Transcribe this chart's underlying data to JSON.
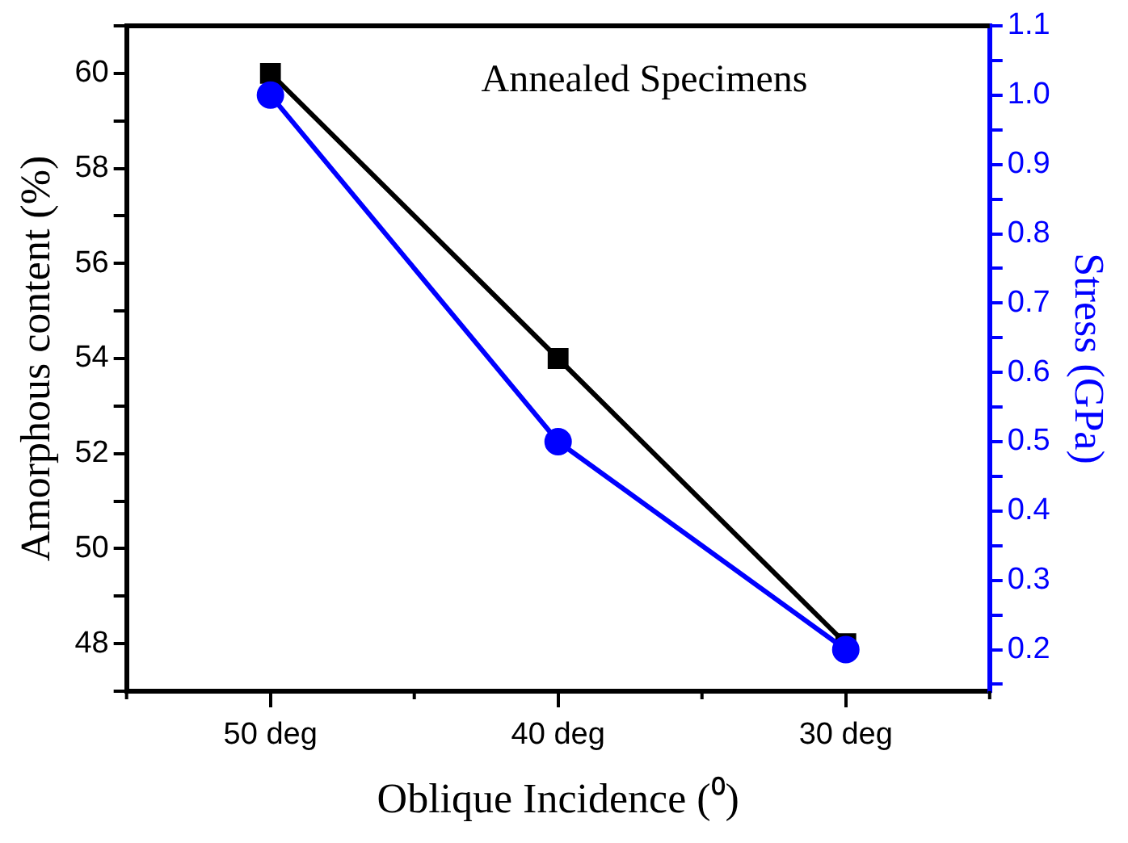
{
  "chart_data": {
    "type": "line",
    "title": "Annealed Specimens",
    "xlabel": "Oblique Incidence (⁰)",
    "ylabel": "Amorphous content (%)",
    "y2label": "Stress (GPa)",
    "categories": [
      "50 deg",
      "40 deg",
      "30 deg"
    ],
    "series": [
      {
        "color": "#000000",
        "values": [
          60,
          54,
          48
        ],
        "marker": "square"
      },
      {
        "color": "#0000ff",
        "values": [
          1.0,
          0.5,
          0.2
        ],
        "marker": "circle",
        "axis": "y2"
      }
    ],
    "ylim": [
      47,
      61
    ],
    "yticks": [
      {
        "value": 47,
        "label": null
      },
      48,
      {
        "value": 49,
        "label": null
      },
      50,
      {
        "value": 51,
        "label": null
      },
      52,
      {
        "value": 53,
        "label": null
      },
      54,
      {
        "value": 55,
        "label": null
      },
      56,
      {
        "value": 57,
        "label": null
      },
      58,
      {
        "value": 59,
        "label": null
      },
      60,
      {
        "value": 61,
        "label": null
      }
    ],
    "y2lim": [
      0.14,
      1.1
    ],
    "y2ticks": [
      {
        "value": 0.15,
        "label": null
      },
      {
        "value": 0.2,
        "label": "0.2"
      },
      {
        "value": 0.25,
        "label": null
      },
      {
        "value": 0.3,
        "label": "0.3"
      },
      {
        "value": 0.35,
        "label": null
      },
      {
        "value": 0.4,
        "label": "0.4"
      },
      {
        "value": 0.45,
        "label": null
      },
      {
        "value": 0.5,
        "label": "0.5"
      },
      {
        "value": 0.55,
        "label": null
      },
      {
        "value": 0.6,
        "label": "0.6"
      },
      {
        "value": 0.65,
        "label": null
      },
      {
        "value": 0.7,
        "label": "0.7"
      },
      {
        "value": 0.75,
        "label": null
      },
      {
        "value": 0.8,
        "label": "0.8"
      },
      {
        "value": 0.85,
        "label": null
      },
      {
        "value": 0.9,
        "label": "0.9"
      },
      {
        "value": 0.95,
        "label": null
      },
      {
        "value": 1.0,
        "label": "1.0"
      },
      {
        "value": 1.05,
        "label": null
      },
      {
        "value": 1.1,
        "label": "1.1"
      }
    ],
    "grid": false,
    "legend": false,
    "line_style": "solid"
  }
}
